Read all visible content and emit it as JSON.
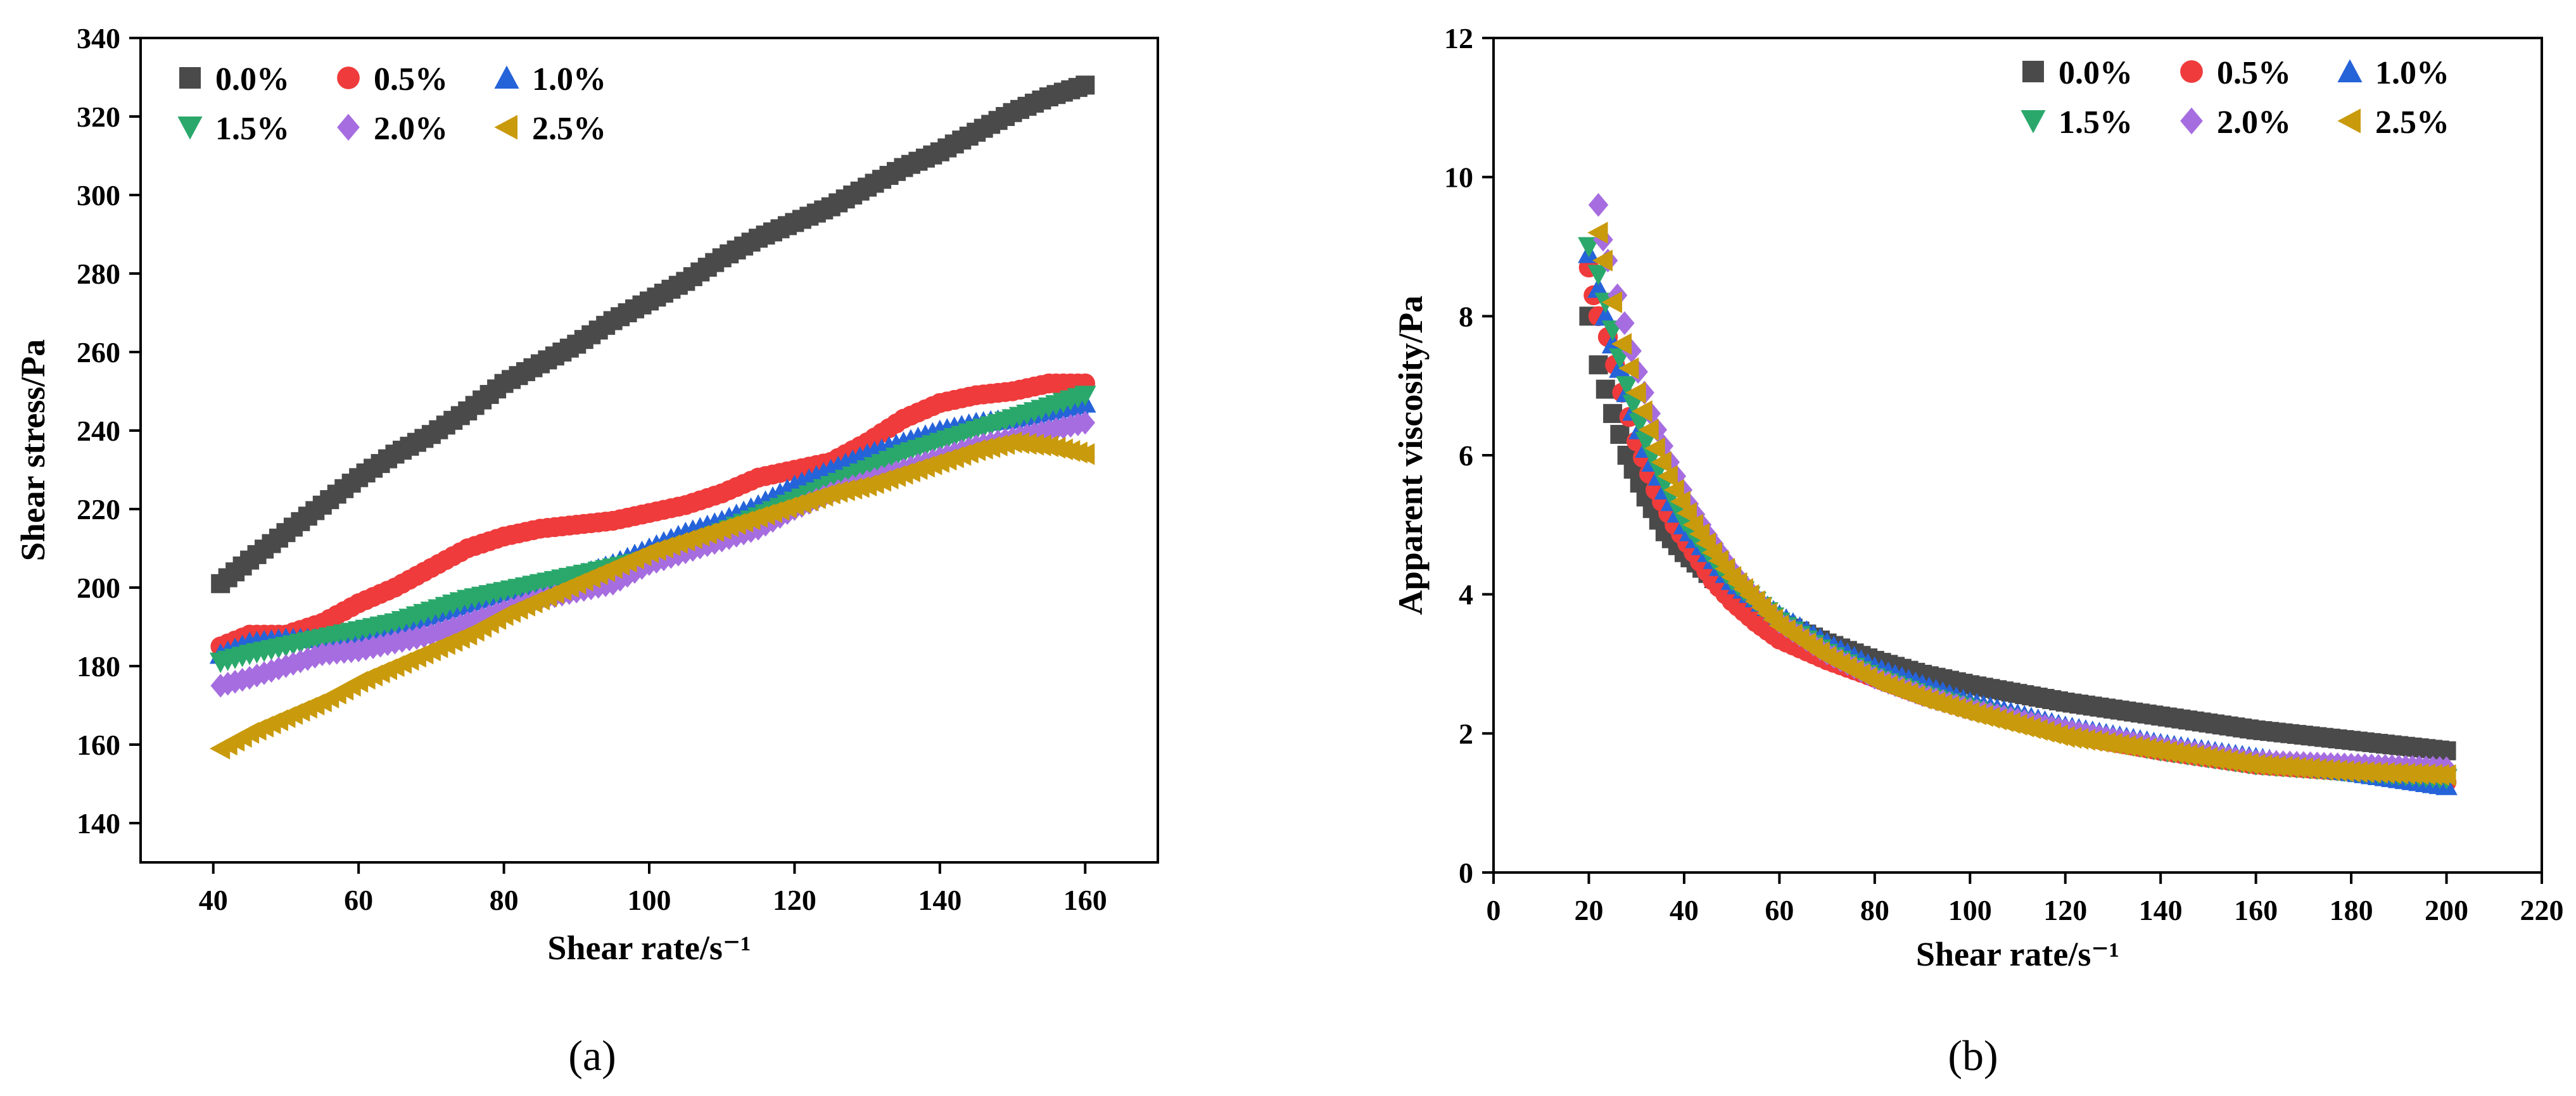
{
  "chart_data": [
    {
      "type": "scatter",
      "caption": "(a)",
      "xlabel": "Shear rate/s⁻¹",
      "ylabel": "Shear stress/Pa",
      "xlim": [
        30,
        170
      ],
      "ylim": [
        130,
        340
      ],
      "xticks": [
        40,
        60,
        80,
        100,
        120,
        140,
        160
      ],
      "yticks": [
        140,
        160,
        180,
        200,
        220,
        240,
        260,
        280,
        300,
        320,
        340
      ],
      "legend_position": "top-left",
      "series": [
        {
          "name": "0.0%",
          "color": "#4a4a4a",
          "marker": "square",
          "x": [
            41,
            45,
            50,
            55,
            60,
            65,
            70,
            75,
            80,
            85,
            90,
            95,
            100,
            105,
            110,
            115,
            120,
            125,
            130,
            135,
            140,
            145,
            150,
            155,
            160
          ],
          "y": [
            201,
            207,
            214,
            221,
            228,
            234,
            239,
            245,
            252,
            257,
            262,
            268,
            273,
            278,
            284,
            289,
            293,
            297,
            302,
            307,
            311,
            316,
            321,
            325,
            328
          ]
        },
        {
          "name": "0.5%",
          "color": "#ef3b3b",
          "marker": "circle",
          "x": [
            41,
            45,
            50,
            55,
            60,
            65,
            70,
            75,
            80,
            85,
            90,
            95,
            100,
            105,
            110,
            115,
            120,
            125,
            130,
            135,
            140,
            145,
            150,
            155,
            160
          ],
          "y": [
            185,
            188,
            188,
            191,
            196,
            200,
            205,
            210,
            213,
            215,
            216,
            217,
            219,
            221,
            224,
            228,
            230,
            232,
            237,
            243,
            247,
            249,
            250,
            252,
            252
          ]
        },
        {
          "name": "1.0%",
          "color": "#2563d9",
          "marker": "triangle-up",
          "x": [
            41,
            45,
            50,
            55,
            60,
            65,
            70,
            75,
            80,
            85,
            90,
            95,
            100,
            105,
            110,
            115,
            120,
            125,
            130,
            135,
            140,
            145,
            150,
            155,
            160
          ],
          "y": [
            183,
            186,
            187,
            187,
            188,
            190,
            193,
            196,
            199,
            201,
            203,
            206,
            210,
            214,
            217,
            221,
            226,
            230,
            234,
            237,
            240,
            242,
            243,
            245,
            247
          ]
        },
        {
          "name": "1.5%",
          "color": "#2aa86b",
          "marker": "triangle-down",
          "x": [
            41,
            45,
            50,
            55,
            60,
            65,
            70,
            75,
            80,
            85,
            90,
            95,
            100,
            105,
            110,
            115,
            120,
            125,
            130,
            135,
            140,
            145,
            150,
            155,
            160
          ],
          "y": [
            181,
            183,
            185,
            187,
            189,
            191,
            194,
            197,
            199,
            201,
            203,
            205,
            207,
            210,
            214,
            218,
            222,
            226,
            230,
            234,
            237,
            240,
            243,
            246,
            249
          ]
        },
        {
          "name": "2.0%",
          "color": "#a66de0",
          "marker": "diamond",
          "x": [
            41,
            45,
            50,
            55,
            60,
            65,
            70,
            75,
            80,
            85,
            90,
            95,
            100,
            105,
            110,
            115,
            120,
            125,
            130,
            135,
            140,
            145,
            150,
            155,
            160
          ],
          "y": [
            175,
            177,
            180,
            183,
            184,
            186,
            188,
            191,
            194,
            197,
            199,
            201,
            206,
            209,
            212,
            215,
            220,
            224,
            227,
            230,
            233,
            236,
            238,
            240,
            242
          ]
        },
        {
          "name": "2.5%",
          "color": "#c99a0c",
          "marker": "triangle-left",
          "x": [
            41,
            45,
            50,
            55,
            60,
            65,
            70,
            75,
            80,
            85,
            90,
            95,
            100,
            105,
            110,
            115,
            120,
            125,
            130,
            135,
            140,
            145,
            150,
            155,
            160
          ],
          "y": [
            159,
            163,
            167,
            171,
            176,
            180,
            184,
            188,
            193,
            197,
            201,
            205,
            209,
            212,
            215,
            218,
            221,
            224,
            226,
            229,
            232,
            235,
            237,
            236,
            234
          ]
        }
      ]
    },
    {
      "type": "scatter",
      "caption": "(b)",
      "xlabel": "Shear rate/s⁻¹",
      "ylabel": "Apparent viscosity/Pa",
      "xlim": [
        0,
        220
      ],
      "ylim": [
        0,
        12
      ],
      "xticks": [
        0,
        20,
        40,
        60,
        80,
        100,
        120,
        140,
        160,
        180,
        200,
        220
      ],
      "yticks": [
        0,
        2,
        4,
        6,
        8,
        10,
        12
      ],
      "legend_position": "top-right",
      "series": [
        {
          "name": "0.0%",
          "color": "#4a4a4a",
          "marker": "square",
          "x": [
            20,
            22,
            25,
            28,
            32,
            36,
            40,
            45,
            50,
            55,
            60,
            70,
            80,
            90,
            100,
            120,
            140,
            160,
            180,
            200
          ],
          "y": [
            8.0,
            7.3,
            6.6,
            6.0,
            5.4,
            4.9,
            4.6,
            4.3,
            4.0,
            3.8,
            3.6,
            3.3,
            3.05,
            2.85,
            2.7,
            2.45,
            2.25,
            2.05,
            1.9,
            1.75
          ]
        },
        {
          "name": "0.5%",
          "color": "#ef3b3b",
          "marker": "circle",
          "x": [
            20,
            21,
            22,
            24,
            27,
            30,
            34,
            38,
            42,
            46,
            50,
            55,
            60,
            70,
            80,
            90,
            100,
            120,
            140,
            160,
            180,
            200
          ],
          "y": [
            8.7,
            8.3,
            8.0,
            7.7,
            6.9,
            6.2,
            5.5,
            5.0,
            4.6,
            4.2,
            3.9,
            3.6,
            3.35,
            3.05,
            2.8,
            2.55,
            2.35,
            2.0,
            1.75,
            1.55,
            1.45,
            1.3
          ]
        },
        {
          "name": "1.0%",
          "color": "#2563d9",
          "marker": "triangle-up",
          "x": [
            20,
            22,
            25,
            28,
            32,
            36,
            40,
            45,
            50,
            55,
            60,
            70,
            80,
            90,
            100,
            120,
            140,
            160,
            180,
            200
          ],
          "y": [
            8.9,
            8.4,
            7.6,
            6.9,
            6.1,
            5.5,
            5.0,
            4.6,
            4.2,
            3.95,
            3.7,
            3.3,
            2.95,
            2.7,
            2.45,
            2.1,
            1.85,
            1.65,
            1.45,
            1.25
          ]
        },
        {
          "name": "1.5%",
          "color": "#2aa86b",
          "marker": "triangle-down",
          "x": [
            20,
            22,
            25,
            28,
            32,
            36,
            40,
            45,
            50,
            55,
            60,
            70,
            80,
            90,
            100,
            120,
            140,
            160,
            180,
            200
          ],
          "y": [
            9.0,
            8.6,
            7.8,
            7.0,
            6.2,
            5.6,
            5.05,
            4.6,
            4.2,
            3.9,
            3.6,
            3.15,
            2.8,
            2.55,
            2.35,
            2.0,
            1.75,
            1.55,
            1.45,
            1.35
          ]
        },
        {
          "name": "2.0%",
          "color": "#a66de0",
          "marker": "diamond",
          "x": [
            22,
            23,
            24,
            26,
            29,
            33,
            37,
            41,
            45,
            50,
            55,
            60,
            70,
            80,
            90,
            100,
            120,
            140,
            160,
            180,
            200
          ],
          "y": [
            9.6,
            9.1,
            8.8,
            8.3,
            7.5,
            6.6,
            5.9,
            5.3,
            4.85,
            4.35,
            3.95,
            3.6,
            3.15,
            2.8,
            2.55,
            2.35,
            2.05,
            1.8,
            1.6,
            1.55,
            1.5
          ]
        },
        {
          "name": "2.5%",
          "color": "#c99a0c",
          "marker": "triangle-left",
          "x": [
            22,
            23,
            25,
            27,
            30,
            34,
            38,
            42,
            46,
            50,
            55,
            60,
            70,
            80,
            90,
            100,
            120,
            140,
            160,
            180,
            200
          ],
          "y": [
            9.2,
            8.8,
            8.2,
            7.6,
            6.9,
            6.1,
            5.5,
            5.0,
            4.6,
            4.25,
            3.9,
            3.55,
            3.1,
            2.75,
            2.5,
            2.3,
            1.95,
            1.75,
            1.55,
            1.45,
            1.4
          ]
        }
      ]
    }
  ]
}
